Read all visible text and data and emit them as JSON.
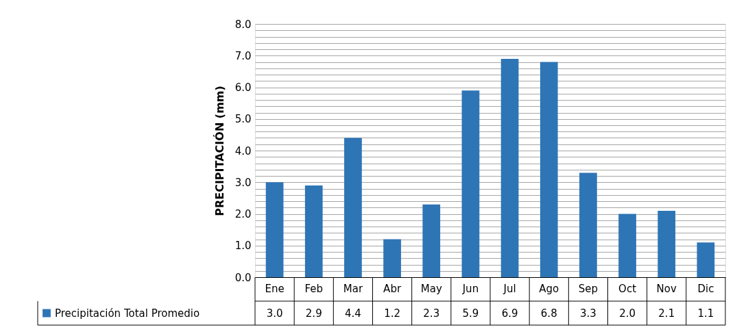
{
  "chart_data": {
    "type": "bar",
    "ylabel": "PRECIPITACIÓN (mm)",
    "categories": [
      "Ene",
      "Feb",
      "Mar",
      "Abr",
      "May",
      "Jun",
      "Jul",
      "Ago",
      "Sep",
      "Oct",
      "Nov",
      "Dic"
    ],
    "series": [
      {
        "name": "Precipitación Total Promedio",
        "color": "#2e75b6",
        "values": [
          3.0,
          2.9,
          4.4,
          1.2,
          2.3,
          5.9,
          6.9,
          6.8,
          3.3,
          2.0,
          2.1,
          1.1
        ],
        "value_labels": [
          "3.0",
          "2.9",
          "4.4",
          "1.2",
          "2.3",
          "5.9",
          "6.9",
          "6.8",
          "3.3",
          "2.0",
          "2.1",
          "1.1"
        ]
      }
    ],
    "ylim": [
      0,
      8
    ],
    "yticks": [
      {
        "value": 0,
        "label": "0.0"
      },
      {
        "value": 0.2,
        "label": null
      },
      {
        "value": 0.4,
        "label": null
      },
      {
        "value": 0.6,
        "label": null
      },
      {
        "value": 0.8,
        "label": null
      },
      {
        "value": 1,
        "label": "1.0"
      },
      {
        "value": 1.2,
        "label": null
      },
      {
        "value": 1.4,
        "label": null
      },
      {
        "value": 1.6,
        "label": null
      },
      {
        "value": 1.8,
        "label": null
      },
      {
        "value": 2,
        "label": "2.0"
      },
      {
        "value": 2.2,
        "label": null
      },
      {
        "value": 2.4,
        "label": null
      },
      {
        "value": 2.6,
        "label": null
      },
      {
        "value": 2.8,
        "label": null
      },
      {
        "value": 3,
        "label": "3.0"
      },
      {
        "value": 3.2,
        "label": null
      },
      {
        "value": 3.4,
        "label": null
      },
      {
        "value": 3.6,
        "label": null
      },
      {
        "value": 3.8,
        "label": null
      },
      {
        "value": 4,
        "label": "4.0"
      },
      {
        "value": 4.2,
        "label": null
      },
      {
        "value": 4.4,
        "label": null
      },
      {
        "value": 4.6,
        "label": null
      },
      {
        "value": 4.8,
        "label": null
      },
      {
        "value": 5,
        "label": "5.0"
      },
      {
        "value": 5.2,
        "label": null
      },
      {
        "value": 5.4,
        "label": null
      },
      {
        "value": 5.6,
        "label": null
      },
      {
        "value": 5.8,
        "label": null
      },
      {
        "value": 6,
        "label": "6.0"
      },
      {
        "value": 6.2,
        "label": null
      },
      {
        "value": 6.4,
        "label": null
      },
      {
        "value": 6.6,
        "label": null
      },
      {
        "value": 6.8,
        "label": null
      },
      {
        "value": 7,
        "label": "7.0"
      },
      {
        "value": 7.2,
        "label": null
      },
      {
        "value": 7.4,
        "label": null
      },
      {
        "value": 7.6,
        "label": null
      },
      {
        "value": 7.8,
        "label": null
      },
      {
        "value": 8,
        "label": "8.0"
      }
    ],
    "grid": "y",
    "legend": "bottom"
  }
}
